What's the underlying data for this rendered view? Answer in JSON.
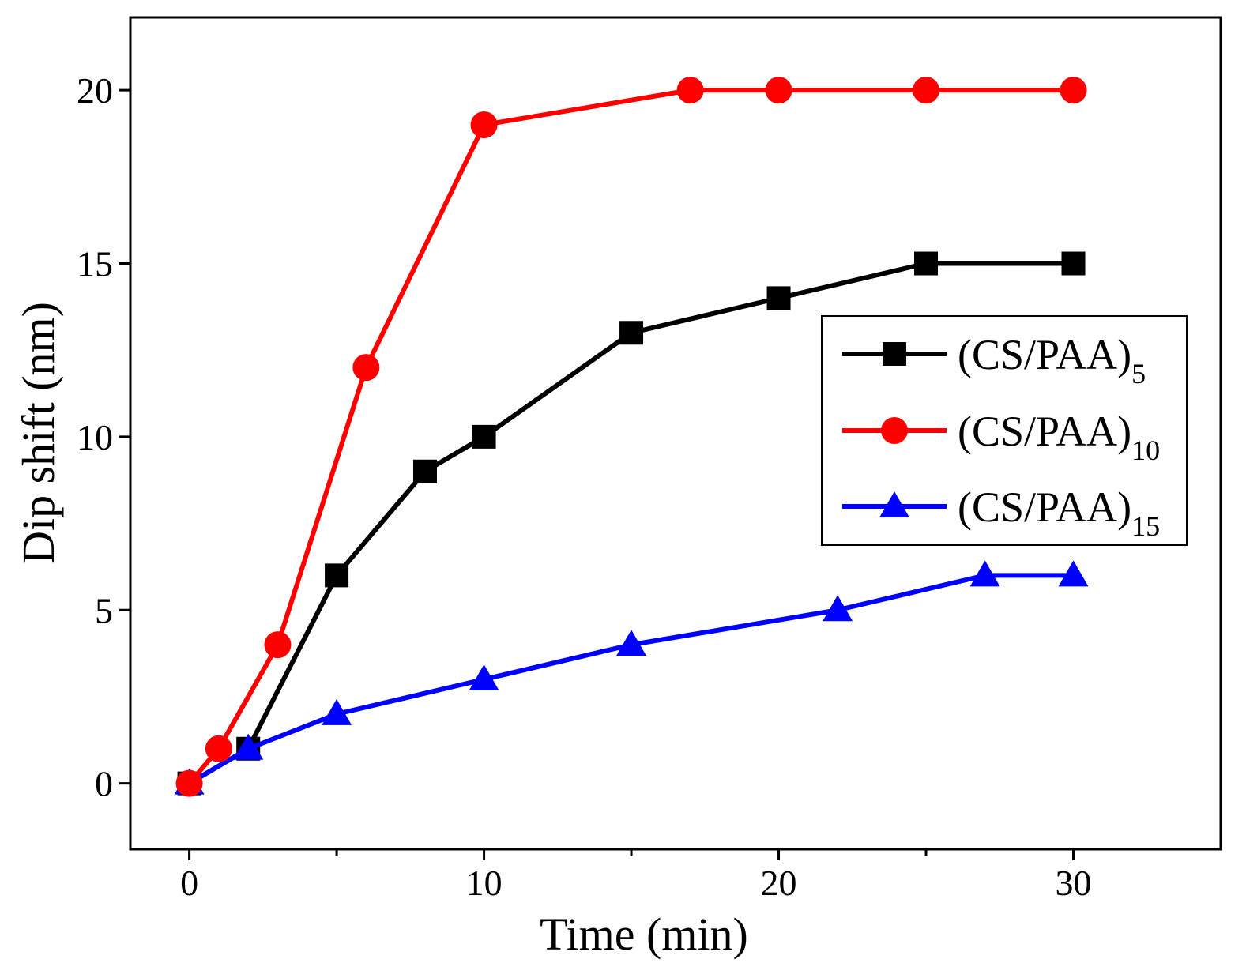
{
  "chart_data": {
    "type": "line",
    "title": "",
    "xlabel": "Time (min)",
    "ylabel": "Dip shift (nm)",
    "xlim": [
      -2,
      35
    ],
    "ylim": [
      -1.9,
      22.1
    ],
    "xticks": [
      0,
      10,
      20,
      30
    ],
    "xminor": [
      5,
      15,
      25
    ],
    "yticks": [
      0,
      5,
      10,
      15,
      20
    ],
    "legend_position": "center-right",
    "series": [
      {
        "name": "(CS/PAA)",
        "subscript": "5",
        "color": "#000000",
        "marker": "square",
        "x": [
          0,
          2,
          5,
          8,
          10,
          15,
          20,
          25,
          30
        ],
        "y": [
          0,
          1,
          6,
          9,
          10,
          13,
          14,
          15,
          15
        ]
      },
      {
        "name": "(CS/PAA)",
        "subscript": "10",
        "color": "#ff0000",
        "marker": "circle",
        "x": [
          0,
          1,
          3,
          6,
          10,
          17,
          20,
          25,
          30
        ],
        "y": [
          0,
          1,
          4,
          12,
          19,
          20,
          20,
          20,
          20
        ]
      },
      {
        "name": "(CS/PAA)",
        "subscript": "15",
        "color": "#0000ff",
        "marker": "triangle",
        "x": [
          0,
          2,
          5,
          10,
          15,
          22,
          27,
          30
        ],
        "y": [
          0,
          1,
          2,
          3,
          4,
          5,
          6,
          6
        ]
      }
    ]
  }
}
